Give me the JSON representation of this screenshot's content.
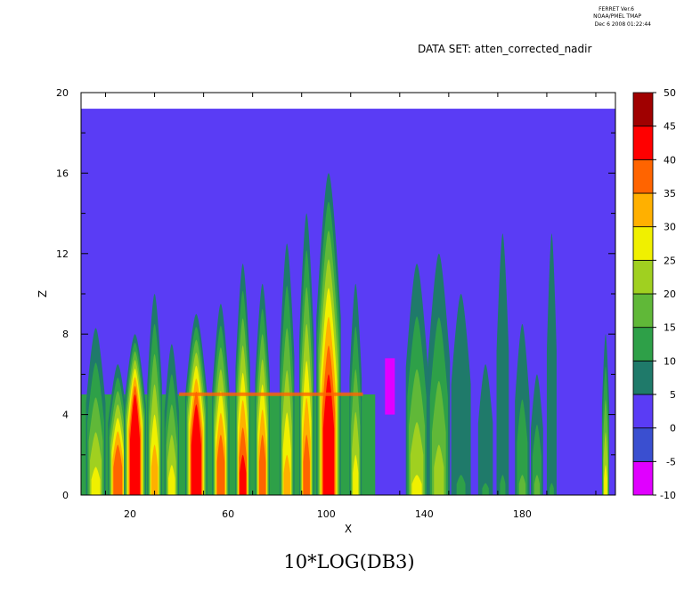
{
  "header": {
    "line1": "FERRET  Ver.6",
    "line2": "NOAA/PMEL TMAP",
    "line3": "Dec  6 2008 01:22:44",
    "dataset": "DATA SET: atten_corrected_nadir"
  },
  "chart_data": {
    "type": "heatmap",
    "title": "10*LOG(DB3)",
    "xlabel": "X",
    "ylabel": "Z",
    "xlim": [
      0,
      218
    ],
    "ylim": [
      0,
      20
    ],
    "x_ticks": [
      20,
      60,
      100,
      140,
      180
    ],
    "y_ticks": [
      0,
      4,
      8,
      12,
      16,
      20
    ],
    "grid": false,
    "colorbar": {
      "placement": "right",
      "levels": [
        -10,
        -5,
        0,
        5,
        10,
        15,
        20,
        25,
        30,
        35,
        40,
        45,
        50
      ],
      "colors": [
        "#e000ff",
        "#3a4fd0",
        "#5a3cf5",
        "#1f7a6a",
        "#2ea048",
        "#60b838",
        "#a0d020",
        "#f0f000",
        "#ffb000",
        "#ff6400",
        "#ff0000",
        "#a00000"
      ]
    },
    "background_value": 0,
    "data_top_z": 19.2,
    "columns": [
      {
        "x": 6,
        "w": 8,
        "top": 8.3,
        "peak": 30,
        "ph": 1.4
      },
      {
        "x": 15,
        "w": 8,
        "top": 6.5,
        "peak": 40,
        "ph": 2.5
      },
      {
        "x": 22,
        "w": 9,
        "top": 8.0,
        "peak": 45,
        "ph": 5.0
      },
      {
        "x": 30,
        "w": 6,
        "top": 10.0,
        "peak": 35,
        "ph": 2.5
      },
      {
        "x": 37,
        "w": 6,
        "top": 7.5,
        "peak": 30,
        "ph": 1.5
      },
      {
        "x": 47,
        "w": 9,
        "top": 9.0,
        "peak": 45,
        "ph": 4.5
      },
      {
        "x": 57,
        "w": 7,
        "top": 9.5,
        "peak": 40,
        "ph": 3.0
      },
      {
        "x": 66,
        "w": 6,
        "top": 11.5,
        "peak": 45,
        "ph": 2.0
      },
      {
        "x": 74,
        "w": 6,
        "top": 10.5,
        "peak": 40,
        "ph": 3.0
      },
      {
        "x": 84,
        "w": 6,
        "top": 12.5,
        "peak": 35,
        "ph": 2.0
      },
      {
        "x": 92,
        "w": 6,
        "top": 14.0,
        "peak": 40,
        "ph": 3.0
      },
      {
        "x": 101,
        "w": 10,
        "top": 16.0,
        "peak": 45,
        "ph": 6.0
      },
      {
        "x": 112,
        "w": 5,
        "top": 10.5,
        "peak": 30,
        "ph": 2.0
      },
      {
        "x": 126,
        "w": 4,
        "top": 6.8,
        "peak": 0,
        "ph": 0
      },
      {
        "x": 137,
        "w": 9,
        "top": 11.5,
        "peak": 30,
        "ph": 1.0
      },
      {
        "x": 146,
        "w": 9,
        "top": 12.0,
        "peak": 25,
        "ph": 2.5
      },
      {
        "x": 155,
        "w": 8,
        "top": 10.0,
        "peak": 15,
        "ph": 1.0
      },
      {
        "x": 165,
        "w": 6,
        "top": 6.5,
        "peak": 15,
        "ph": 0.5
      },
      {
        "x": 172,
        "w": 5,
        "top": 13.0,
        "peak": 15,
        "ph": 1.0
      },
      {
        "x": 180,
        "w": 6,
        "top": 8.5,
        "peak": 20,
        "ph": 1.0
      },
      {
        "x": 186,
        "w": 5,
        "top": 6.0,
        "peak": 20,
        "ph": 1.0
      },
      {
        "x": 192,
        "w": 4,
        "top": 13.0,
        "peak": 15,
        "ph": 0.5
      },
      {
        "x": 214,
        "w": 3,
        "top": 8.0,
        "peak": 30,
        "ph": 1.5
      }
    ]
  }
}
